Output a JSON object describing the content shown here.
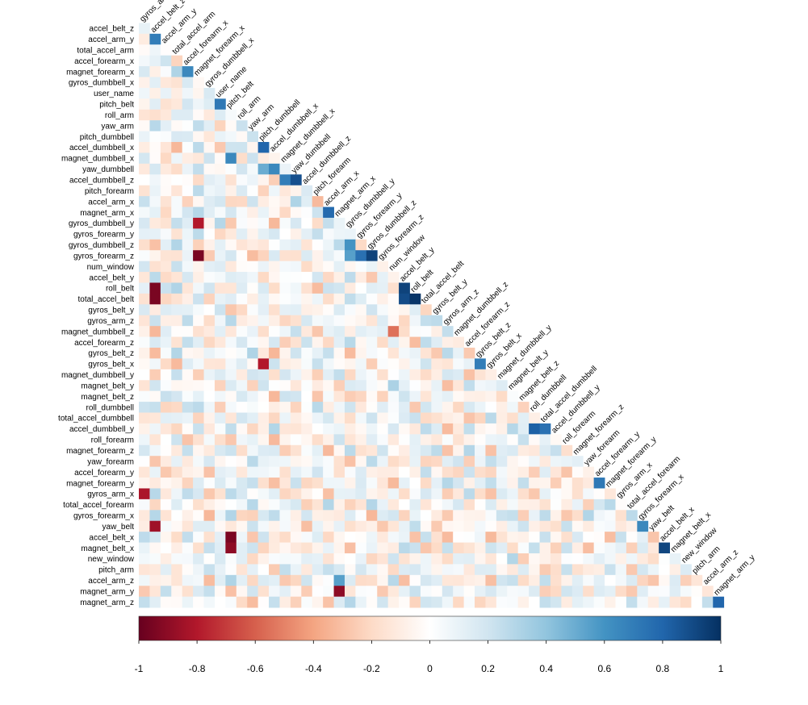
{
  "chart_data": {
    "type": "heatmap",
    "layout": "lower-triangle",
    "variables": [
      "gyros_arm_y",
      "accel_belt_z",
      "accel_arm_y",
      "total_accel_arm",
      "accel_forearm_x",
      "magnet_forearm_x",
      "gyros_dumbbell_x",
      "user_name",
      "pitch_belt",
      "roll_arm",
      "yaw_arm",
      "pitch_dumbbell",
      "accel_dumbbell_x",
      "magnet_dumbbell_x",
      "yaw_dumbbell",
      "accel_dumbbell_z",
      "pitch_forearm",
      "accel_arm_x",
      "magnet_arm_x",
      "gyros_dumbbell_y",
      "gyros_forearm_y",
      "gyros_dumbbell_z",
      "gyros_forearm_z",
      "num_window",
      "accel_belt_y",
      "roll_belt",
      "total_accel_belt",
      "gyros_belt_y",
      "gyros_arm_z",
      "magnet_dumbbell_z",
      "accel_forearm_z",
      "gyros_belt_z",
      "gyros_belt_x",
      "magnet_dumbbell_y",
      "magnet_belt_y",
      "magnet_belt_z",
      "roll_dumbbell",
      "total_accel_dumbbell",
      "accel_dumbbell_y",
      "roll_forearm",
      "magnet_forearm_z",
      "yaw_forearm",
      "accel_forearm_y",
      "magnet_forearm_y",
      "gyros_arm_x",
      "total_accel_forearm",
      "gyros_forearm_x",
      "yaw_belt",
      "accel_belt_x",
      "magnet_belt_x",
      "new_window",
      "pitch_arm",
      "accel_arm_z",
      "magnet_arm_y",
      "magnet_arm_z"
    ],
    "row_labels": [
      "accel_belt_z",
      "accel_arm_y",
      "total_accel_arm",
      "accel_forearm_x",
      "magnet_forearm_x",
      "gyros_dumbbell_x",
      "user_name",
      "pitch_belt",
      "roll_arm",
      "yaw_arm",
      "pitch_dumbbell",
      "accel_dumbbell_x",
      "magnet_dumbbell_x",
      "yaw_dumbbell",
      "accel_dumbbell_z",
      "pitch_forearm",
      "accel_arm_x",
      "magnet_arm_x",
      "gyros_dumbbell_y",
      "gyros_forearm_y",
      "gyros_dumbbell_z",
      "gyros_forearm_z",
      "num_window",
      "accel_belt_y",
      "roll_belt",
      "total_accel_belt",
      "gyros_belt_y",
      "gyros_arm_z",
      "magnet_dumbbell_z",
      "accel_forearm_z",
      "gyros_belt_z",
      "gyros_belt_x",
      "magnet_dumbbell_y",
      "magnet_belt_y",
      "magnet_belt_z",
      "roll_dumbbell",
      "total_accel_dumbbell",
      "accel_dumbbell_y",
      "roll_forearm",
      "magnet_forearm_z",
      "yaw_forearm",
      "accel_forearm_y",
      "magnet_forearm_y",
      "gyros_arm_x",
      "total_accel_forearm",
      "gyros_forearm_x",
      "yaw_belt",
      "accel_belt_x",
      "magnet_belt_x",
      "new_window",
      "pitch_arm",
      "accel_arm_z",
      "magnet_arm_y",
      "magnet_arm_z"
    ],
    "column_labels": [
      "gyros_arm_y",
      "accel_belt_z",
      "accel_arm_y",
      "total_accel_arm",
      "accel_forearm_x",
      "magnet_forearm_x",
      "gyros_dumbbell_x",
      "user_name",
      "pitch_belt",
      "roll_arm",
      "yaw_arm",
      "pitch_dumbbell",
      "accel_dumbbell_x",
      "magnet_dumbbell_x",
      "yaw_dumbbell",
      "accel_dumbbell_z",
      "pitch_forearm",
      "accel_arm_x",
      "magnet_arm_x",
      "gyros_dumbbell_y",
      "gyros_forearm_y",
      "gyros_dumbbell_z",
      "gyros_forearm_z",
      "num_window",
      "accel_belt_y",
      "roll_belt",
      "total_accel_belt",
      "gyros_belt_y",
      "gyros_arm_z",
      "magnet_dumbbell_z",
      "accel_forearm_z",
      "gyros_belt_z",
      "gyros_belt_x",
      "magnet_dumbbell_y",
      "magnet_belt_y",
      "magnet_belt_z",
      "roll_dumbbell",
      "total_accel_dumbbell",
      "accel_dumbbell_y",
      "roll_forearm",
      "magnet_forearm_z",
      "yaw_forearm",
      "accel_forearm_y",
      "magnet_forearm_y",
      "gyros_arm_x",
      "total_accel_forearm",
      "gyros_forearm_x",
      "yaw_belt",
      "accel_belt_x",
      "magnet_belt_x",
      "new_window",
      "pitch_arm",
      "accel_arm_z",
      "magnet_arm_y"
    ],
    "correlations": [
      {
        "pair": [
          "accel_arm_y",
          "accel_belt_z"
        ],
        "value": 0.7
      },
      {
        "pair": [
          "magnet_forearm_x",
          "accel_forearm_x"
        ],
        "value": 0.65
      },
      {
        "pair": [
          "pitch_belt",
          "user_name"
        ],
        "value": 0.72
      },
      {
        "pair": [
          "accel_dumbbell_x",
          "pitch_dumbbell"
        ],
        "value": 0.8
      },
      {
        "pair": [
          "magnet_dumbbell_x",
          "pitch_belt"
        ],
        "value": 0.65
      },
      {
        "pair": [
          "yaw_dumbbell",
          "pitch_dumbbell"
        ],
        "value": 0.5
      },
      {
        "pair": [
          "yaw_dumbbell",
          "accel_dumbbell_x"
        ],
        "value": 0.65
      },
      {
        "pair": [
          "accel_dumbbell_z",
          "magnet_dumbbell_x"
        ],
        "value": 0.7
      },
      {
        "pair": [
          "accel_dumbbell_z",
          "yaw_dumbbell"
        ],
        "value": 0.88
      },
      {
        "pair": [
          "magnet_arm_x",
          "accel_arm_x"
        ],
        "value": 0.78
      },
      {
        "pair": [
          "gyros_dumbbell_z",
          "gyros_dumbbell_y"
        ],
        "value": 0.6
      },
      {
        "pair": [
          "gyros_forearm_z",
          "gyros_dumbbell_y"
        ],
        "value": 0.55
      },
      {
        "pair": [
          "gyros_forearm_z",
          "gyros_forearm_y"
        ],
        "value": 0.75
      },
      {
        "pair": [
          "gyros_forearm_z",
          "gyros_dumbbell_z"
        ],
        "value": 0.93
      },
      {
        "pair": [
          "gyros_dumbbell_y",
          "magnet_forearm_x"
        ],
        "value": -0.8
      },
      {
        "pair": [
          "gyros_forearm_z",
          "magnet_forearm_x"
        ],
        "value": -0.95
      },
      {
        "pair": [
          "roll_belt",
          "accel_belt_y"
        ],
        "value": 0.93
      },
      {
        "pair": [
          "total_accel_belt",
          "accel_belt_y"
        ],
        "value": 0.9
      },
      {
        "pair": [
          "total_accel_belt",
          "roll_belt"
        ],
        "value": 0.98
      },
      {
        "pair": [
          "roll_belt",
          "accel_belt_z"
        ],
        "value": -0.95
      },
      {
        "pair": [
          "total_accel_belt",
          "accel_belt_z"
        ],
        "value": -0.95
      },
      {
        "pair": [
          "magnet_dumbbell_z",
          "num_window"
        ],
        "value": -0.55
      },
      {
        "pair": [
          "gyros_belt_x",
          "gyros_belt_z"
        ],
        "value": 0.7
      },
      {
        "pair": [
          "gyros_belt_x",
          "pitch_dumbbell"
        ],
        "value": -0.8
      },
      {
        "pair": [
          "accel_dumbbell_y",
          "roll_dumbbell"
        ],
        "value": 0.82
      },
      {
        "pair": [
          "accel_dumbbell_y",
          "total_accel_dumbbell"
        ],
        "value": 0.75
      },
      {
        "pair": [
          "magnet_forearm_y",
          "accel_forearm_y"
        ],
        "value": 0.72
      },
      {
        "pair": [
          "gyros_arm_x",
          "gyros_arm_y"
        ],
        "value": -0.82
      },
      {
        "pair": [
          "yaw_belt",
          "accel_belt_z"
        ],
        "value": -0.85
      },
      {
        "pair": [
          "yaw_belt",
          "gyros_forearm_x"
        ],
        "value": 0.65
      },
      {
        "pair": [
          "magnet_belt_x",
          "accel_belt_x"
        ],
        "value": 0.92
      },
      {
        "pair": [
          "accel_belt_x",
          "pitch_belt"
        ],
        "value": -0.95
      },
      {
        "pair": [
          "magnet_belt_x",
          "pitch_belt"
        ],
        "value": -0.9
      },
      {
        "pair": [
          "accel_arm_z",
          "magnet_arm_x"
        ],
        "value": 0.55
      },
      {
        "pair": [
          "magnet_arm_y",
          "magnet_arm_x"
        ],
        "value": -0.9
      },
      {
        "pair": [
          "magnet_arm_z",
          "magnet_arm_y"
        ],
        "value": 0.8
      }
    ],
    "colorbar": {
      "ticks": [
        "-1",
        "-0.8",
        "-0.6",
        "-0.4",
        "-0.2",
        "0",
        "0.2",
        "0.4",
        "0.6",
        "0.8",
        "1"
      ],
      "range": [
        -1,
        1
      ],
      "colors": [
        "#67001F",
        "#B2182B",
        "#D6604D",
        "#F4A582",
        "#FDDBC7",
        "#FFFFFF",
        "#D1E5F0",
        "#92C5DE",
        "#4393C3",
        "#2166AC",
        "#053061"
      ]
    },
    "title": "",
    "xlabel": "",
    "ylabel": ""
  }
}
